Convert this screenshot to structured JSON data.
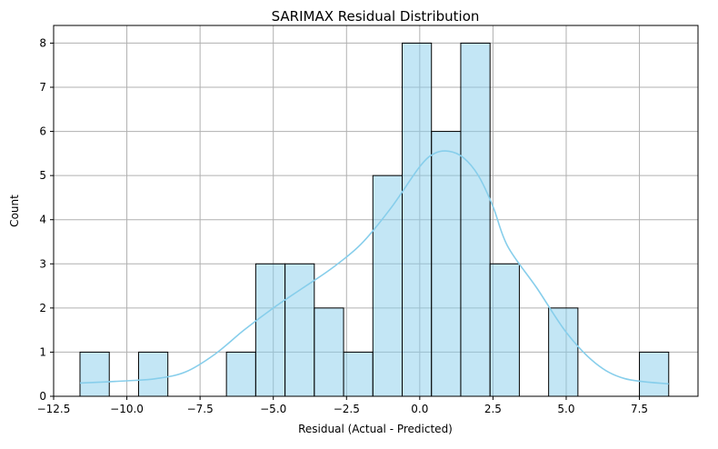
{
  "chart_data": {
    "type": "histogram",
    "title": "SARIMAX Residual Distribution",
    "xlabel": "Residual (Actual - Predicted)",
    "ylabel": "Count",
    "xlim": [
      -12.5,
      9.5
    ],
    "ylim": [
      0,
      8.4
    ],
    "grid": true,
    "bin_width": 1.0,
    "bins": [
      {
        "x0": -11.6,
        "x1": -10.6,
        "count": 1
      },
      {
        "x0": -9.6,
        "x1": -8.6,
        "count": 1
      },
      {
        "x0": -6.6,
        "x1": -5.6,
        "count": 1
      },
      {
        "x0": -5.6,
        "x1": -4.6,
        "count": 3
      },
      {
        "x0": -4.6,
        "x1": -3.6,
        "count": 3
      },
      {
        "x0": -3.6,
        "x1": -2.6,
        "count": 2
      },
      {
        "x0": -2.6,
        "x1": -1.6,
        "count": 1
      },
      {
        "x0": -1.6,
        "x1": -0.6,
        "count": 5
      },
      {
        "x0": -0.6,
        "x1": 0.4,
        "count": 8
      },
      {
        "x0": 0.4,
        "x1": 1.4,
        "count": 6
      },
      {
        "x0": 1.4,
        "x1": 2.4,
        "count": 8
      },
      {
        "x0": 2.4,
        "x1": 3.4,
        "count": 3
      },
      {
        "x0": 4.4,
        "x1": 5.4,
        "count": 2
      },
      {
        "x0": 7.5,
        "x1": 8.5,
        "count": 1
      }
    ],
    "kde": {
      "x": [
        -11.6,
        -10.0,
        -9.0,
        -8.0,
        -7.0,
        -6.0,
        -5.0,
        -4.0,
        -3.0,
        -2.0,
        -1.0,
        0.0,
        0.5,
        1.0,
        1.5,
        2.0,
        2.5,
        3.0,
        4.0,
        5.0,
        6.0,
        7.0,
        8.5
      ],
      "y": [
        0.3,
        0.35,
        0.4,
        0.55,
        0.95,
        1.5,
        2.0,
        2.45,
        2.9,
        3.45,
        4.25,
        5.2,
        5.5,
        5.55,
        5.4,
        5.0,
        4.3,
        3.4,
        2.45,
        1.45,
        0.75,
        0.4,
        0.28
      ]
    },
    "xticks": [
      -12.5,
      -10.0,
      -7.5,
      -5.0,
      -2.5,
      0.0,
      2.5,
      5.0,
      7.5
    ],
    "xtick_labels": [
      "−12.5",
      "−10.0",
      "−7.5",
      "−5.0",
      "−2.5",
      "0.0",
      "2.5",
      "5.0",
      "7.5"
    ],
    "yticks": [
      0,
      1,
      2,
      3,
      4,
      5,
      6,
      7,
      8
    ],
    "ytick_labels": [
      "0",
      "1",
      "2",
      "3",
      "4",
      "5",
      "6",
      "7",
      "8"
    ],
    "colors": {
      "bar_fill": "#87ceeb",
      "bar_edge": "#000000",
      "kde": "#87ceeb",
      "grid": "#b0b0b0"
    }
  }
}
